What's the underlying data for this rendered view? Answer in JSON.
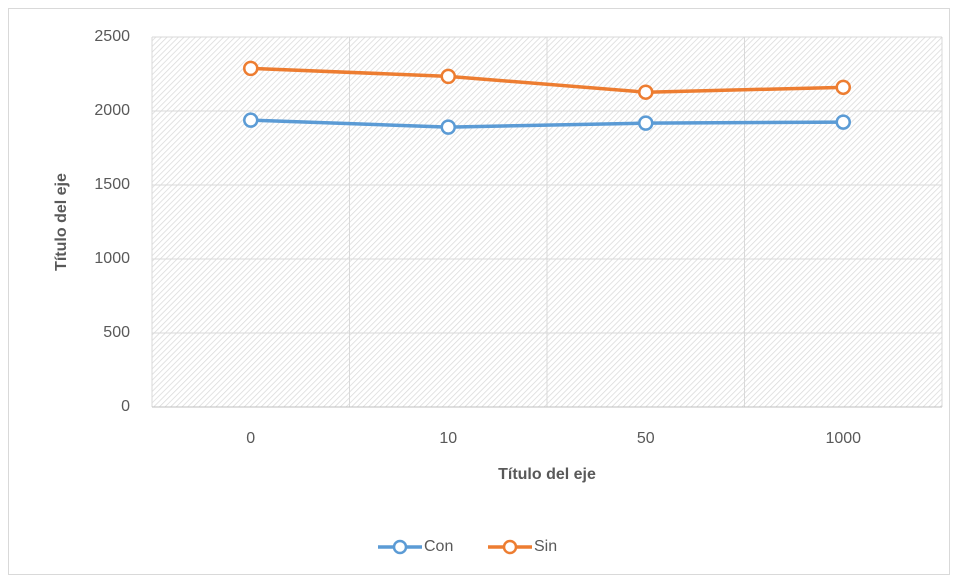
{
  "chart_data": {
    "type": "line",
    "x_label": "Título del eje",
    "y_label": "Título del eje",
    "categories": [
      "0",
      "10",
      "50",
      "1000"
    ],
    "series": [
      {
        "name": "Con",
        "color": "#5b9bd5",
        "values": [
          1938,
          1891,
          1918,
          1925
        ]
      },
      {
        "name": "Sin",
        "color": "#ed7d31",
        "values": [
          2288,
          2234,
          2127,
          2160
        ]
      }
    ],
    "ylim": [
      0,
      2500
    ],
    "yticks": [
      0,
      500,
      1000,
      1500,
      2000,
      2500
    ],
    "grid": true,
    "legend": "bottom"
  }
}
